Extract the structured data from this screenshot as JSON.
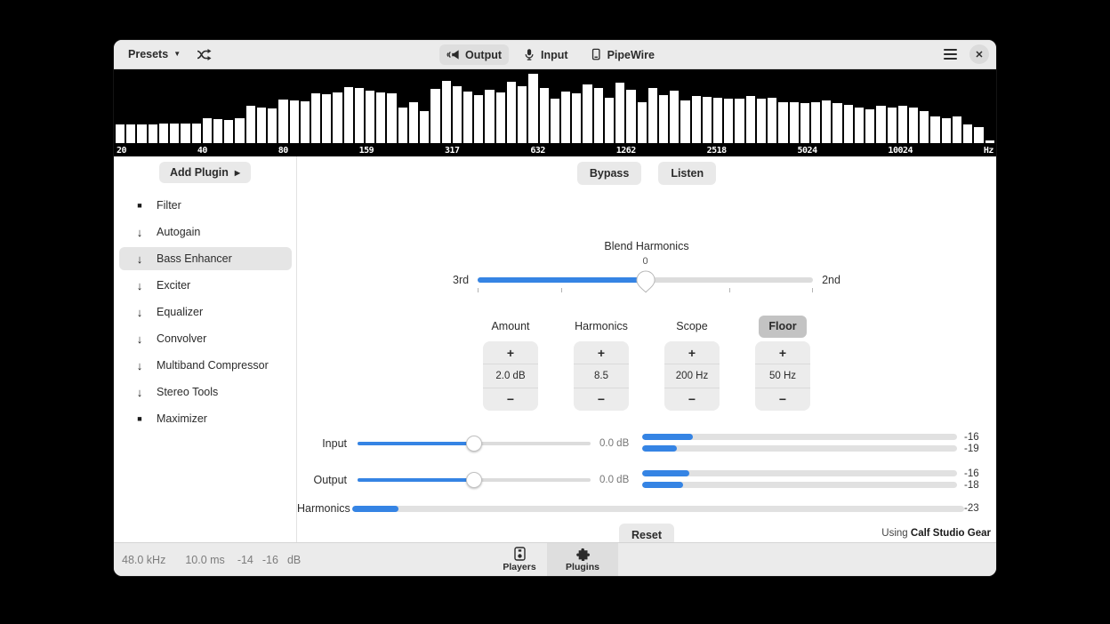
{
  "header": {
    "presets_label": "Presets",
    "output_label": "Output",
    "input_label": "Input",
    "pipewire_label": "PipeWire"
  },
  "spectrum": {
    "type": "bar",
    "freq_labels": [
      "20",
      "40",
      "80",
      "159",
      "317",
      "632",
      "1262",
      "2518",
      "5024",
      "10024",
      "Hz"
    ],
    "bars": [
      0.26,
      0.26,
      0.26,
      0.26,
      0.27,
      0.27,
      0.28,
      0.28,
      0.35,
      0.34,
      0.33,
      0.35,
      0.52,
      0.5,
      0.49,
      0.61,
      0.6,
      0.59,
      0.7,
      0.69,
      0.71,
      0.79,
      0.78,
      0.74,
      0.71,
      0.7,
      0.5,
      0.57,
      0.45,
      0.76,
      0.88,
      0.8,
      0.73,
      0.68,
      0.75,
      0.71,
      0.86,
      0.8,
      0.97,
      0.78,
      0.62,
      0.72,
      0.7,
      0.83,
      0.77,
      0.64,
      0.85,
      0.75,
      0.58,
      0.78,
      0.68,
      0.74,
      0.6,
      0.66,
      0.65,
      0.64,
      0.62,
      0.63,
      0.66,
      0.62,
      0.64,
      0.58,
      0.57,
      0.56,
      0.58,
      0.6,
      0.56,
      0.54,
      0.5,
      0.48,
      0.52,
      0.5,
      0.53,
      0.5,
      0.45,
      0.38,
      0.35,
      0.37,
      0.26,
      0.22,
      0.04
    ]
  },
  "sidebar": {
    "add_plugin_label": "Add Plugin",
    "items": [
      {
        "label": "Filter",
        "icon": "square-icon",
        "selected": false
      },
      {
        "label": "Autogain",
        "icon": "arrow-down-icon",
        "selected": false
      },
      {
        "label": "Bass Enhancer",
        "icon": "arrow-down-icon",
        "selected": true
      },
      {
        "label": "Exciter",
        "icon": "arrow-down-icon",
        "selected": false
      },
      {
        "label": "Equalizer",
        "icon": "arrow-down-icon",
        "selected": false
      },
      {
        "label": "Convolver",
        "icon": "arrow-down-icon",
        "selected": false
      },
      {
        "label": "Multiband Compressor",
        "icon": "arrow-down-icon",
        "selected": false
      },
      {
        "label": "Stereo Tools",
        "icon": "arrow-down-icon",
        "selected": false
      },
      {
        "label": "Maximizer",
        "icon": "square-icon",
        "selected": false
      }
    ]
  },
  "main": {
    "bypass_label": "Bypass",
    "listen_label": "Listen",
    "blend": {
      "title": "Blend Harmonics",
      "value": "0",
      "left": "3rd",
      "right": "2nd",
      "percent": 50
    },
    "spin_controls": {
      "plus": "+",
      "minus": "−"
    },
    "spinners": [
      {
        "label": "Amount",
        "value": "2.0 dB",
        "toggled": false
      },
      {
        "label": "Harmonics",
        "value": "8.5",
        "toggled": false
      },
      {
        "label": "Scope",
        "value": "200 Hz",
        "toggled": false
      },
      {
        "label": "Floor",
        "value": "50 Hz",
        "toggled": true
      }
    ],
    "levels": [
      {
        "label": "Input",
        "value": "0.0 dB",
        "slider_percent": 50,
        "meters": [
          {
            "db": "-16",
            "pct": 16
          },
          {
            "db": "-19",
            "pct": 11
          }
        ]
      },
      {
        "label": "Output",
        "value": "0.0 dB",
        "slider_percent": 50,
        "meters": [
          {
            "db": "-16",
            "pct": 15
          },
          {
            "db": "-18",
            "pct": 13
          }
        ]
      }
    ],
    "harmonics_meter": {
      "label": "Harmonics",
      "pct": 7.5,
      "db": "-23"
    },
    "reset_label": "Reset",
    "using_prefix": "Using",
    "using_name": "Calf Studio Gear"
  },
  "statusbar": {
    "rate": "48.0 kHz",
    "latency": "10.0 ms",
    "level1": "-14",
    "level2": "-16",
    "unit": "dB",
    "tabs": [
      {
        "label": "Players",
        "selected": false
      },
      {
        "label": "Plugins",
        "selected": true
      }
    ]
  },
  "colors": {
    "accent": "#3584e4",
    "spectrum_bar": "#ffffff",
    "chrome": "#ebebeb",
    "selected_button": "#dedede",
    "toggle_active": "#c3c3c3"
  }
}
